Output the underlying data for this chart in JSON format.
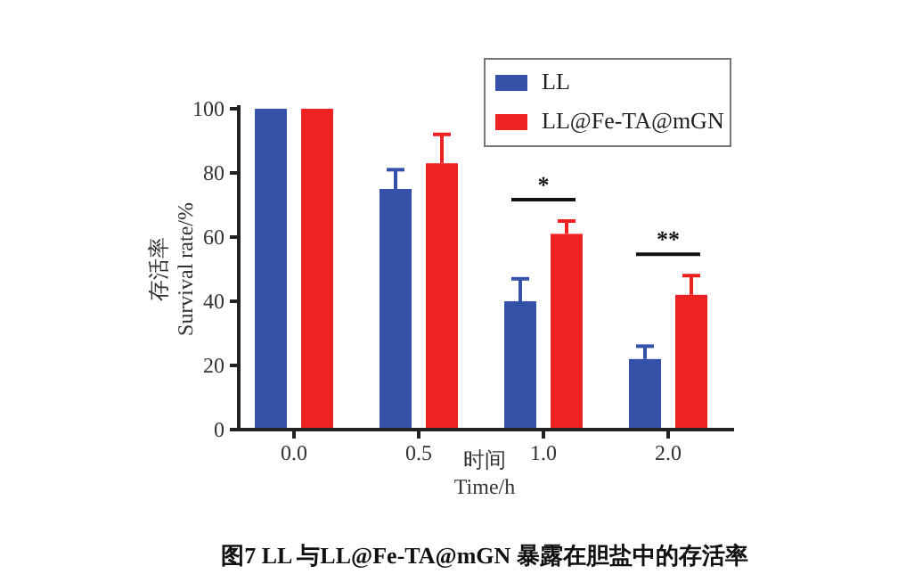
{
  "chart_data": {
    "type": "bar",
    "categories": [
      "0.0",
      "0.5",
      "1.0",
      "2.0"
    ],
    "series": [
      {
        "name": "LL",
        "color": "#3352a8",
        "values": [
          100,
          75,
          40,
          22
        ],
        "errors": [
          null,
          6,
          7,
          4
        ]
      },
      {
        "name": "LL@Fe-TA@mGN",
        "color": "#ee2222",
        "values": [
          100,
          83,
          61,
          42
        ],
        "errors": [
          null,
          9,
          4,
          6
        ]
      }
    ],
    "ylim": [
      0,
      100
    ],
    "yticks": [
      0,
      20,
      40,
      60,
      80,
      100
    ],
    "ylabel": "存活率\nSurvival rate/%",
    "xlabel": "时间\nTime/h",
    "legend": "top right",
    "grid": false,
    "annotations": [
      "*",
      "**",
      "图7 LL 与LL@Fe-TA@mGN 暴露在胆盐中的存活率"
    ]
  }
}
